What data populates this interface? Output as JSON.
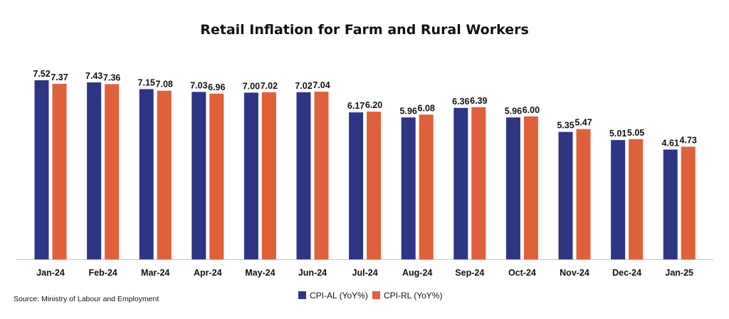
{
  "chart_data": {
    "type": "bar",
    "title": "Retail Inflation for Farm and Rural Workers",
    "categories": [
      "Jan-24",
      "Feb-24",
      "Mar-24",
      "Apr-24",
      "May-24",
      "Jun-24",
      "Jul-24",
      "Aug-24",
      "Sep-24",
      "Oct-24",
      "Nov-24",
      "Dec-24",
      "Jan-25"
    ],
    "series": [
      {
        "name": "CPI-AL (YoY%)",
        "color": "#2e3585",
        "values": [
          7.52,
          7.43,
          7.15,
          7.03,
          7.0,
          7.02,
          6.17,
          5.96,
          6.36,
          5.96,
          5.35,
          5.01,
          4.61
        ],
        "labels": [
          "7.52",
          "7.43",
          "7.15",
          "7.03",
          "7.00",
          "7.02",
          "6.17",
          "5.96",
          "6.36",
          "5.96",
          "5.35",
          "5.01",
          "4.61"
        ]
      },
      {
        "name": "CPI-RL (YoY%)",
        "color": "#e0603a",
        "values": [
          7.37,
          7.36,
          7.08,
          6.96,
          7.02,
          7.04,
          6.2,
          6.08,
          6.39,
          6.0,
          5.47,
          5.05,
          4.73
        ],
        "labels": [
          "7.37",
          "7.36",
          "7.08",
          "6.96",
          "7.02",
          "7.04",
          "6.20",
          "6.08",
          "6.39",
          "6.00",
          "5.47",
          "5.05",
          "4.73"
        ]
      }
    ],
    "ylim": [
      0,
      7.52
    ],
    "grid": false,
    "legend_position": "bottom-center"
  },
  "source": "Source:  Ministry of Labour and Employment"
}
